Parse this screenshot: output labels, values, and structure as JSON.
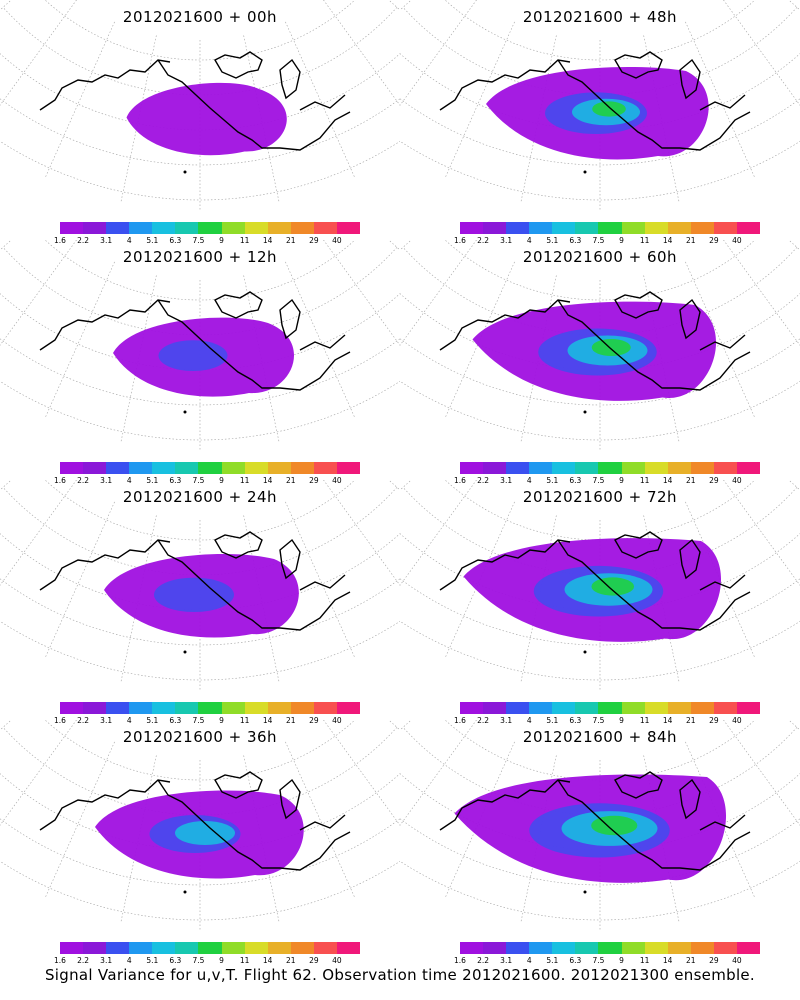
{
  "caption": "Signal Variance for u,v,T. Flight 62. Observation time 2012021600. 2012021300 ensemble.",
  "colorbar": {
    "labels": [
      "1.6",
      "2.2",
      "3.1",
      "4",
      "5.1",
      "6.3",
      "7.5",
      "9",
      "11",
      "14",
      "21",
      "29",
      "40"
    ],
    "colors": [
      "#a010e0",
      "#8a18d8",
      "#3a50f0",
      "#1f98f0",
      "#18c0e0",
      "#18c8b0",
      "#20d040",
      "#90dc28",
      "#d8dc28",
      "#e8b028",
      "#f08828",
      "#f85050",
      "#f0187a"
    ]
  },
  "panels": [
    {
      "id": "00h",
      "title": "2012021600 + 00h",
      "level": 0.15
    },
    {
      "id": "48h",
      "title": "2012021600 + 48h",
      "level": 0.6
    },
    {
      "id": "12h",
      "title": "2012021600 + 12h",
      "level": 0.3
    },
    {
      "id": "60h",
      "title": "2012021600 + 60h",
      "level": 0.75
    },
    {
      "id": "24h",
      "title": "2012021600 + 24h",
      "level": 0.4
    },
    {
      "id": "72h",
      "title": "2012021600 + 72h",
      "level": 0.85
    },
    {
      "id": "36h",
      "title": "2012021600 + 36h",
      "level": 0.5
    },
    {
      "id": "84h",
      "title": "2012021600 + 84h",
      "level": 0.95
    }
  ]
}
